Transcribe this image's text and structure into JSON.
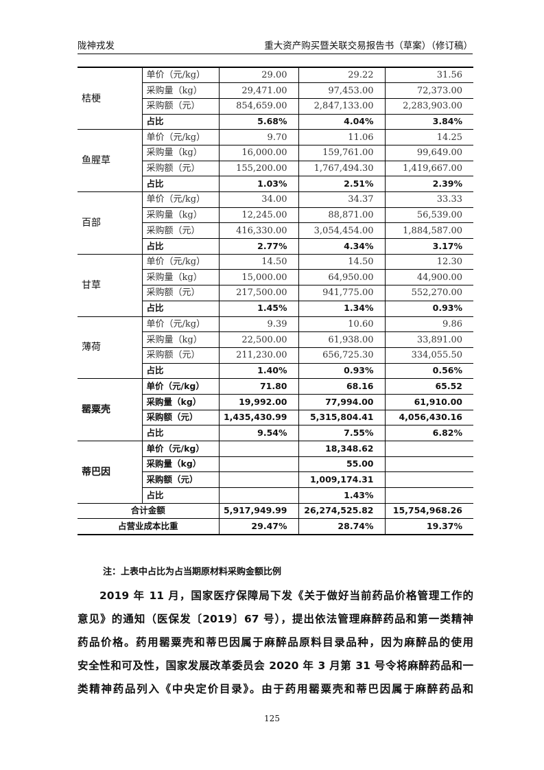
{
  "header": {
    "company": "陇神戎发",
    "doc_title": "重大资产购买暨关联交易报告书（草案）（修订稿）"
  },
  "table": {
    "groups": [
      {
        "name": "桔梗",
        "emphasis": false,
        "rows": [
          {
            "label": "单价（元/kg）",
            "values": [
              "29.00",
              "29.22",
              "31.56"
            ]
          },
          {
            "label": "采购量（kg）",
            "values": [
              "29,471.00",
              "97,453.00",
              "72,373.00"
            ]
          },
          {
            "label": "采购额（元）",
            "values": [
              "854,659.00",
              "2,847,133.00",
              "2,283,903.00"
            ]
          },
          {
            "label": "占比",
            "values": [
              "5.68%",
              "4.04%",
              "3.84%"
            ]
          }
        ]
      },
      {
        "name": "鱼腥草",
        "emphasis": false,
        "rows": [
          {
            "label": "单价（元/kg）",
            "values": [
              "9.70",
              "11.06",
              "14.25"
            ]
          },
          {
            "label": "采购量（kg）",
            "values": [
              "16,000.00",
              "159,761.00",
              "99,649.00"
            ]
          },
          {
            "label": "采购额（元）",
            "values": [
              "155,200.00",
              "1,767,494.30",
              "1,419,667.00"
            ]
          },
          {
            "label": "占比",
            "values": [
              "1.03%",
              "2.51%",
              "2.39%"
            ]
          }
        ]
      },
      {
        "name": "百部",
        "emphasis": false,
        "rows": [
          {
            "label": "单价（元/kg）",
            "values": [
              "34.00",
              "34.37",
              "33.33"
            ]
          },
          {
            "label": "采购量（kg）",
            "values": [
              "12,245.00",
              "88,871.00",
              "56,539.00"
            ]
          },
          {
            "label": "采购额（元）",
            "values": [
              "416,330.00",
              "3,054,454.00",
              "1,884,587.00"
            ]
          },
          {
            "label": "占比",
            "values": [
              "2.77%",
              "4.34%",
              "3.17%"
            ]
          }
        ]
      },
      {
        "name": "甘草",
        "emphasis": false,
        "rows": [
          {
            "label": "单价（元/kg）",
            "values": [
              "14.50",
              "14.50",
              "12.30"
            ]
          },
          {
            "label": "采购量（kg）",
            "values": [
              "15,000.00",
              "64,950.00",
              "44,900.00"
            ]
          },
          {
            "label": "采购额（元）",
            "values": [
              "217,500.00",
              "941,775.00",
              "552,270.00"
            ]
          },
          {
            "label": "占比",
            "values": [
              "1.45%",
              "1.34%",
              "0.93%"
            ]
          }
        ]
      },
      {
        "name": "薄荷",
        "emphasis": false,
        "rows": [
          {
            "label": "单价（元/kg）",
            "values": [
              "9.39",
              "10.60",
              "9.86"
            ]
          },
          {
            "label": "采购量（kg）",
            "values": [
              "22,500.00",
              "61,938.00",
              "33,891.00"
            ]
          },
          {
            "label": "采购额（元）",
            "values": [
              "211,230.00",
              "656,725.30",
              "334,055.50"
            ]
          },
          {
            "label": "占比",
            "values": [
              "1.40%",
              "0.93%",
              "0.56%"
            ]
          }
        ]
      },
      {
        "name": "罂粟壳",
        "emphasis": true,
        "rows": [
          {
            "label": "单价（元/kg）",
            "values": [
              "71.80",
              "68.16",
              "65.52"
            ]
          },
          {
            "label": "采购量（kg）",
            "values": [
              "19,992.00",
              "77,994.00",
              "61,910.00"
            ]
          },
          {
            "label": "采购额（元）",
            "values": [
              "1,435,430.99",
              "5,315,804.41",
              "4,056,430.16"
            ]
          },
          {
            "label": "占比",
            "values": [
              "9.54%",
              "7.55%",
              "6.82%"
            ]
          }
        ]
      },
      {
        "name": "蒂巴因",
        "emphasis": true,
        "rows": [
          {
            "label": "单价（元/kg）",
            "values": [
              "",
              "18,348.62",
              ""
            ]
          },
          {
            "label": "采购量（kg）",
            "values": [
              "",
              "55.00",
              ""
            ]
          },
          {
            "label": "采购额（元）",
            "values": [
              "",
              "1,009,174.31",
              ""
            ]
          },
          {
            "label": "占比",
            "values": [
              "",
              "1.43%",
              ""
            ]
          }
        ]
      }
    ],
    "totals": [
      {
        "label": "合计金额",
        "values": [
          "5,917,949.99",
          "26,274,525.82",
          "15,754,968.26"
        ]
      },
      {
        "label": "占营业成本比重",
        "values": [
          "29.47%",
          "28.74%",
          "19.37%"
        ]
      }
    ]
  },
  "note": "注：上表中占比为占当期原材料采购金额比例",
  "paragraph_lines": [
    "2019 年 11 月，国家医疗保障局下发《关于做好当前药品价格管理工作的",
    "意见》的通知（医保发〔2019〕67 号），提出依法管理麻醉药品和第一类精神",
    "药品价格。药用罂粟壳和蒂巴因属于麻醉品原料目录品种，因为麻醉品的使用",
    "安全性和可及性，国家发展改革委员会 2020 年 3 月第 31 号令将麻醉药品和一",
    "类精神药品列入《中央定价目录》。由于药用罂粟壳和蒂巴因属于麻醉药品和"
  ],
  "page_number": "125"
}
